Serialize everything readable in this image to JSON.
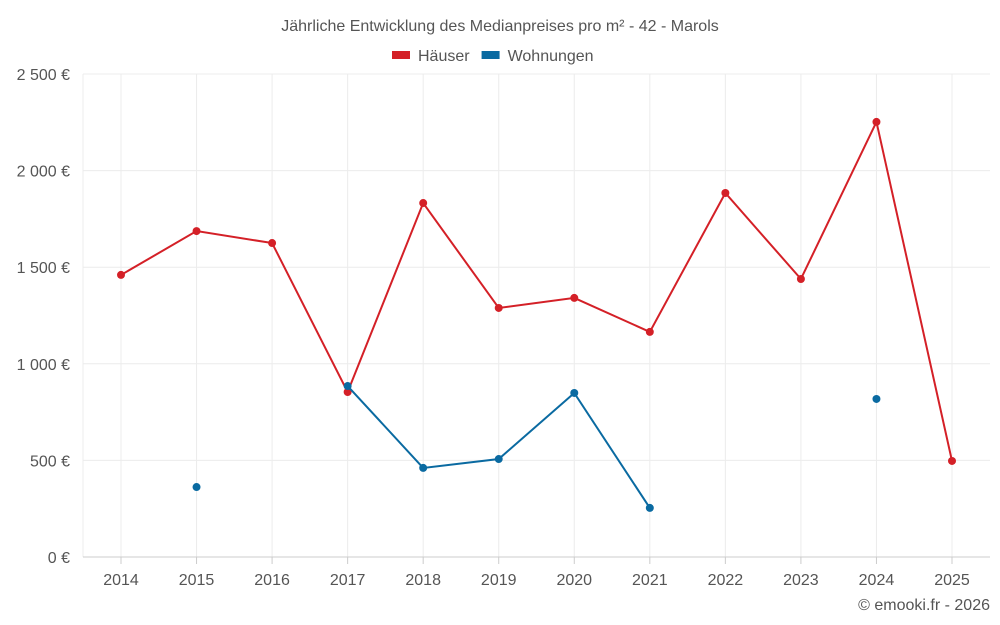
{
  "chart_data": {
    "type": "line",
    "title": "Jährliche Entwicklung des Medianpreises pro m² - 42 - Marols",
    "categories": [
      "2014",
      "2015",
      "2016",
      "2017",
      "2018",
      "2019",
      "2020",
      "2021",
      "2022",
      "2023",
      "2024",
      "2025"
    ],
    "series": [
      {
        "name": "Häuser",
        "color": "#d42027",
        "values": [
          1460,
          1687,
          1625,
          854,
          1832,
          1289,
          1341,
          1165,
          1884,
          1439,
          2252,
          497
        ]
      },
      {
        "name": "Wohnungen",
        "color": "#0a6aa1",
        "values": [
          null,
          362,
          null,
          885,
          461,
          507,
          849,
          254,
          null,
          null,
          818,
          null
        ]
      }
    ],
    "ylim": [
      0,
      2500
    ],
    "yticks": [
      0,
      500,
      1000,
      1500,
      2000,
      2500
    ],
    "ytick_labels": [
      "0 €",
      "500 €",
      "1 000 €",
      "1 500 €",
      "2 000 €",
      "2 500 €"
    ],
    "legend": "top-center",
    "grid": true,
    "xlabel": "",
    "ylabel": ""
  },
  "credit": "© emooki.fr - 2026"
}
